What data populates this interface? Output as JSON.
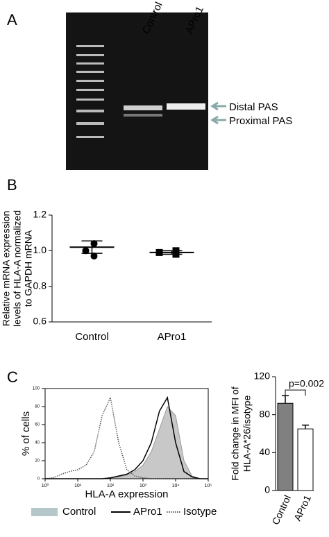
{
  "panel_labels": [
    "A",
    "B",
    "C"
  ],
  "gel": {
    "lanes": [
      "Control",
      "APro1"
    ],
    "bands": [
      "Distal PAS",
      "Proximal PAS"
    ]
  },
  "chart_data": [
    {
      "type": "dot",
      "ylabel": [
        "Relative mRNA expression",
        "levels of HLA-A normalized",
        "to GAPDH mRNA"
      ],
      "categories": [
        "Control",
        "APro1"
      ],
      "markers": [
        "circle",
        "square"
      ],
      "points": [
        [
          1.04,
          1.0,
          0.97
        ],
        [
          1.0,
          0.99,
          0.98
        ]
      ],
      "means": [
        1.02,
        0.99
      ],
      "errors": [
        0.035,
        0.01
      ],
      "ylim": [
        0.6,
        1.2
      ],
      "yticks": [
        0.6,
        0.8,
        {
          "value": 1,
          "label": "1.0"
        },
        1.2
      ]
    },
    {
      "type": "line",
      "xlabel": "HLA-A expression",
      "ylabel": "% of cells",
      "xscale": "log",
      "x": [
        1,
        1.8,
        3.2,
        5.6,
        10,
        18,
        32,
        56,
        100,
        180,
        320,
        560,
        1000,
        1800,
        3200,
        5600,
        10000,
        18000,
        32000,
        56000,
        100000
      ],
      "series": [
        {
          "name": "Control",
          "color": "#c8c8c8",
          "style": "fill",
          "values": [
            0,
            0,
            0,
            0,
            0,
            0,
            0,
            0,
            1,
            2,
            4,
            8,
            15,
            30,
            55,
            80,
            70,
            20,
            3,
            0,
            0
          ]
        },
        {
          "name": "APro1",
          "color": "#000000",
          "style": "solid",
          "values": [
            0,
            0,
            0,
            0,
            0,
            0,
            0,
            0,
            1,
            3,
            5,
            10,
            20,
            40,
            75,
            90,
            40,
            8,
            2,
            0,
            0
          ]
        },
        {
          "name": "Isotype",
          "color": "#555555",
          "style": "dotted",
          "values": [
            0,
            1,
            5,
            8,
            10,
            15,
            30,
            70,
            90,
            40,
            10,
            3,
            1,
            0,
            0,
            0,
            0,
            0,
            0,
            0,
            0
          ]
        }
      ],
      "xlim": [
        1,
        100000
      ],
      "xticks": [
        {
          "value": 1,
          "label": "10⁰"
        },
        {
          "value": 10,
          "label": "10¹"
        },
        {
          "value": 100,
          "label": "10²"
        },
        {
          "value": 1000,
          "label": "10³"
        },
        {
          "value": 10000,
          "label": "10⁴"
        },
        {
          "value": 100000,
          "label": "10⁵"
        }
      ],
      "ylim": [
        0,
        100
      ],
      "yticks": [
        0,
        20,
        40,
        60,
        80,
        100
      ]
    },
    {
      "type": "bar",
      "ylabel": [
        "Fold change in MFI of",
        "HLA-A*26/isotype"
      ],
      "annotation": "p=0.002",
      "categories": [
        "Control",
        "APro1"
      ],
      "values": [
        92,
        65
      ],
      "errors": [
        8,
        4
      ],
      "colors": [
        "#808080",
        "#ffffff"
      ],
      "ylim": [
        0,
        120
      ],
      "yticks": [
        0,
        40,
        80,
        120
      ]
    }
  ]
}
